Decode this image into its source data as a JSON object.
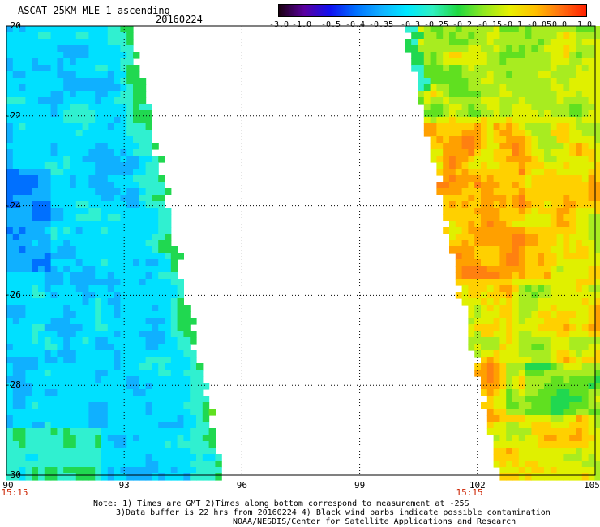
{
  "header": {
    "title": "ASCAT 25KM MLE-1 ascending",
    "date": "20160224"
  },
  "colorbar": {
    "labels": [
      "-3.0",
      "-1.0",
      "-0.5",
      "-0.4",
      "-0.35",
      "-0.3",
      "-0.25",
      "-0.2",
      "-0.15",
      "-0.1",
      "-0.05",
      "0.0",
      "1.0"
    ],
    "colors": [
      "#1a0010",
      "#5a00a0",
      "#1010f0",
      "#0070ff",
      "#10b0ff",
      "#00e8ff",
      "#30f0c0",
      "#20d840",
      "#90e820",
      "#e8f000",
      "#ffc000",
      "#ff7010",
      "#ff2000"
    ]
  },
  "map": {
    "lat_labels": [
      "-20",
      "-22",
      "-24",
      "-26",
      "-28",
      "-30"
    ],
    "lon_labels": [
      "90",
      "93",
      "96",
      "99",
      "102",
      "105"
    ],
    "time_labels": [
      "15:15",
      "15:15"
    ],
    "extent": {
      "lon_min": 90,
      "lon_max": 105,
      "lat_min": -30,
      "lat_max": -20
    },
    "swaths": [
      {
        "name": "west swath",
        "dominant": "cyan (-0.3 to -0.25)",
        "east_edge_lon_at_lat_-20": 93.2,
        "east_edge_lon_at_lat_-30": 95.5
      },
      {
        "name": "east swath",
        "dominant": "green to orange (-0.2 to 0.0)",
        "west_edge_lon_at_lat_-20": 100.0,
        "west_edge_lon_at_lat_-30": 102.4
      }
    ]
  },
  "notes": {
    "line1": "Note: 1) Times are GMT 2)Times along bottom correspond to measurement at -25S",
    "line2": "3)Data buffer is 22 hrs from 20160224 4) Black wind barbs indicate possible contamination",
    "line3": "NOAA/NESDIS/Center for Satellite Applications and Research"
  }
}
